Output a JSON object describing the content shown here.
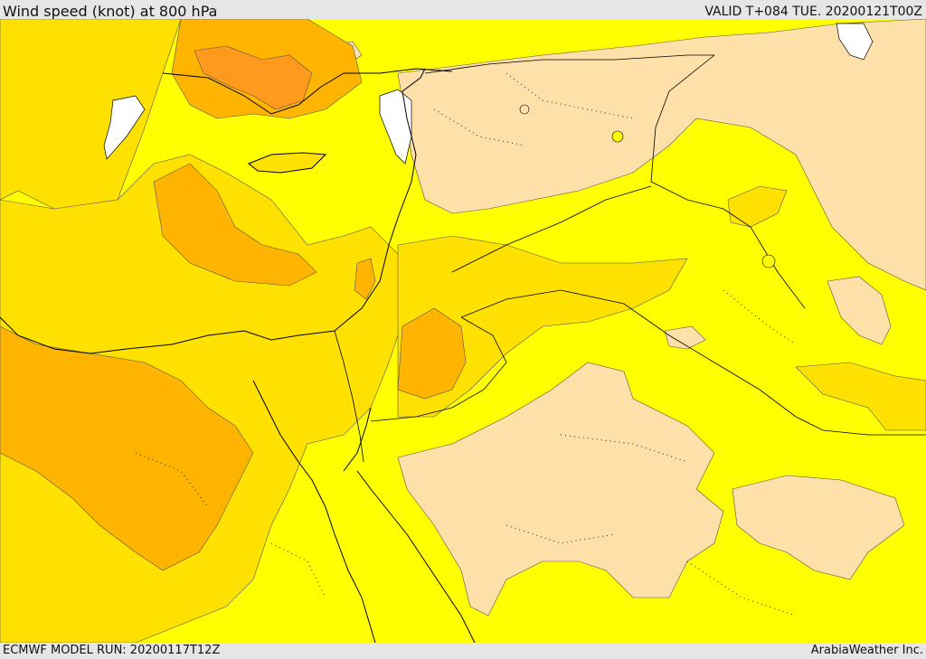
{
  "header": {
    "title": "Wind speed (knot) at 800 hPa",
    "valid": "VALID T+084 TUE. 20200121T00Z"
  },
  "footer": {
    "model_run": "ECMWF MODEL RUN: 20200117T12Z",
    "credit": "ArabiaWeather Inc."
  },
  "map": {
    "palette": {
      "land_water_missing": "#ffffff",
      "band_0_5": "#ffe0a8",
      "band_5_10": "#ffff00",
      "band_10_15": "#ffe100",
      "band_15_20": "#ffb400",
      "band_20_25": "#ff9a1e",
      "coastline": "#000000"
    }
  }
}
